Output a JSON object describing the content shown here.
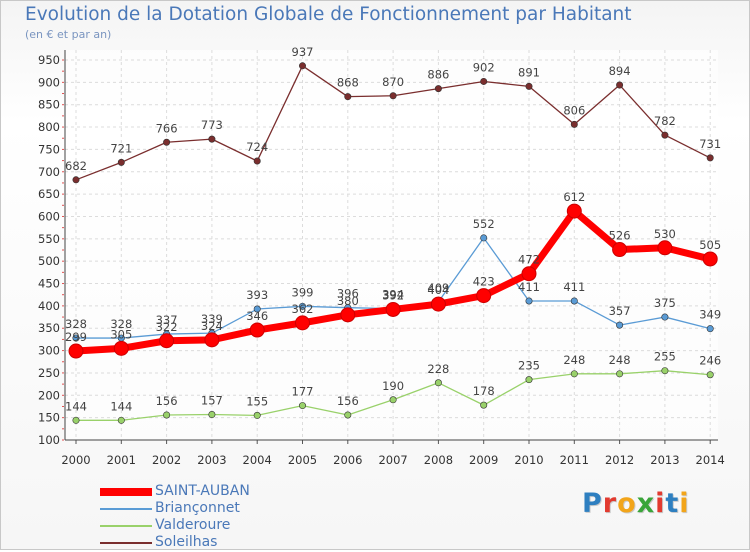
{
  "title": "Evolution de la Dotation Globale de Fonctionnement par Habitant",
  "subtitle": "(en € et par an)",
  "logo": {
    "text": "Proxiti",
    "colors": [
      "#2e7fc0",
      "#e23a2f",
      "#f2a51a",
      "#3aa53a",
      "#e23a2f",
      "#2e7fc0",
      "#f2a51a"
    ]
  },
  "chart_data": {
    "type": "line",
    "x": [
      "2000",
      "2001",
      "2002",
      "2003",
      "2004",
      "2005",
      "2006",
      "2007",
      "2008",
      "2009",
      "2010",
      "2011",
      "2012",
      "2013",
      "2014"
    ],
    "ylim": [
      100,
      950
    ],
    "yticks": [
      100,
      150,
      200,
      250,
      300,
      350,
      400,
      450,
      500,
      550,
      600,
      650,
      700,
      750,
      800,
      850,
      900,
      950
    ],
    "grid": true,
    "legend_position": "bottom-left",
    "series": [
      {
        "name": "SAINT-AUBAN",
        "color": "#ff0000",
        "values": [
          299,
          305,
          322,
          324,
          346,
          362,
          380,
          392,
          404,
          423,
          472,
          612,
          526,
          530,
          505
        ]
      },
      {
        "name": "Briançonnet",
        "color": "#5a9bd5",
        "values": [
          328,
          328,
          337,
          339,
          393,
          399,
          396,
          394,
          409,
          552,
          411,
          411,
          357,
          375,
          349
        ]
      },
      {
        "name": "Valderoure",
        "color": "#99d16a",
        "values": [
          144,
          144,
          156,
          157,
          155,
          177,
          156,
          190,
          228,
          178,
          235,
          248,
          248,
          255,
          246
        ]
      },
      {
        "name": "Soleilhas",
        "color": "#7a2e2e",
        "values": [
          682,
          721,
          766,
          773,
          724,
          937,
          868,
          870,
          886,
          902,
          891,
          806,
          894,
          782,
          731
        ]
      }
    ]
  }
}
